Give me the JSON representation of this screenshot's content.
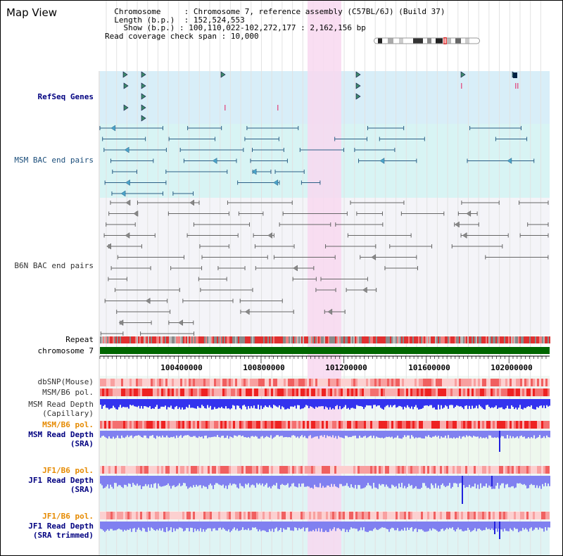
{
  "title": "Map View",
  "info": {
    "chromosome_key": "Chromosome",
    "chromosome_val": "Chromosome 7, reference assembly (C57BL/6J) (Build 37)",
    "length_key": "Length (b.p.)",
    "length_val": "152,524,553",
    "show_key": "Show (b.p.)",
    "show_val": "100,110,022-102,272,177 : 2,162,156 bp",
    "read_key": "Read coverage check span",
    "read_val": "10,000"
  },
  "tracks": {
    "refseq": "RefSeq Genes",
    "msm_bac": "MSM BAC end pairs",
    "b6n_bac": "B6N BAC end pairs",
    "repeat": "Repeat",
    "chromosome": "chromosome 7",
    "dbsnp": "dbSNP(Mouse)",
    "msm_b6_pol_1": "MSM/B6 pol.",
    "msm_read_depth_cap_1": "MSM Read Depth",
    "msm_read_depth_cap_2": "(Capillary)",
    "msm_b6_pol_2": "MSM/B6 pol.",
    "msm_read_depth_sra_1": "MSM Read Depth",
    "msm_read_depth_sra_2": "(SRA)",
    "jf1_b6_pol_1": "JF1/B6 pol.",
    "jf1_read_depth_sra_1": "JF1 Read Depth",
    "jf1_read_depth_sra_2": "(SRA)",
    "jf1_b6_pol_2": "JF1/B6 pol.",
    "jf1_read_depth_trim_1": "JF1 Read Depth",
    "jf1_read_depth_trim_2": "(SRA trimmed)"
  },
  "axis": {
    "ticks": [
      "100400000",
      "100800000",
      "101200000",
      "101600000",
      "102000000"
    ]
  },
  "colors": {
    "highlight": "#f8d8f0",
    "refseq_bg": "#d8eef8",
    "msm_bg": "#d8f4f4",
    "b6n_bg": "#f4f4f8",
    "chrom_green": "#006600",
    "depth_blue": "#3333ee",
    "depth_light": "#8080f0",
    "label_blue": "#000080",
    "label_orange": "#e68a00"
  }
}
